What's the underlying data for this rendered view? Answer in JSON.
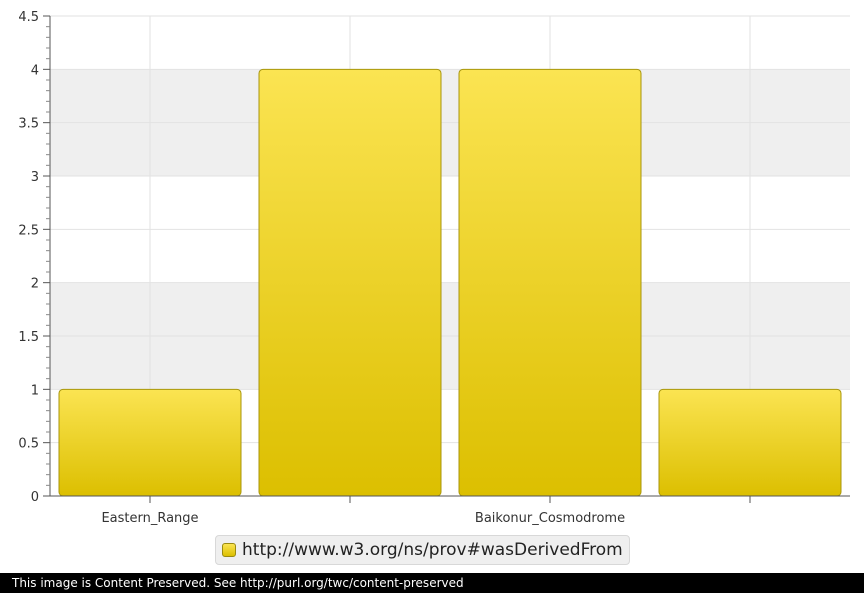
{
  "chart_data": {
    "type": "bar",
    "categories": [
      "Eastern_Range",
      "",
      "Baikonur_Cosmodrome",
      ""
    ],
    "series": [
      {
        "name": "http://www.w3.org/ns/prov#wasDerivedFrom",
        "values": [
          1,
          4,
          4,
          1
        ]
      }
    ],
    "ylim": [
      0,
      4.5
    ],
    "yticks": [
      "0",
      "0.5",
      "1",
      "1.5",
      "2",
      "2.5",
      "3",
      "3.5",
      "4",
      "4.5"
    ],
    "grid": true,
    "legend": "bottom-center",
    "colors": {
      "bar_top": "#fbe452",
      "bar_bottom": "#dcbf00",
      "bar_stroke": "#a8960c",
      "band": "#efefef"
    }
  },
  "footer": {
    "text": "This image is Content Preserved. See http://purl.org/twc/content-preserved"
  }
}
